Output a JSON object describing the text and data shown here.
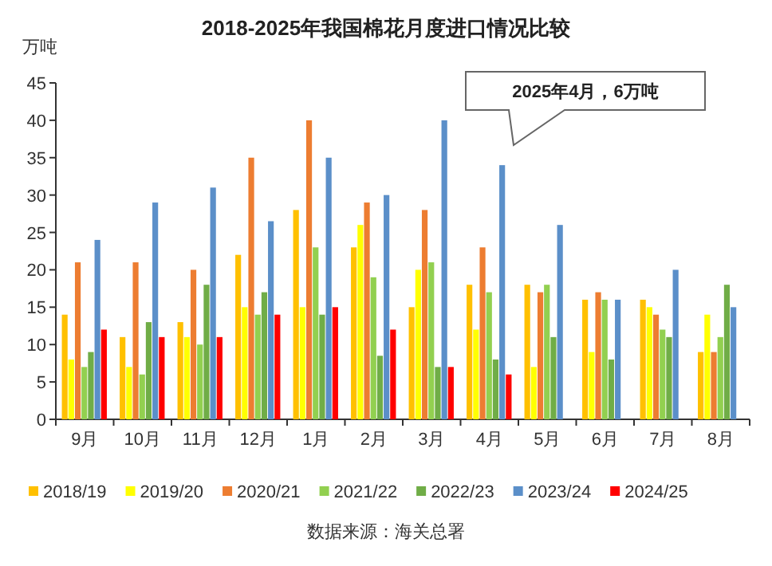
{
  "chart_data": {
    "type": "bar",
    "title": "2018-2025年我国棉花月度进口情况比较",
    "ylabel": "万吨",
    "categories": [
      "9月",
      "10月",
      "11月",
      "12月",
      "1月",
      "2月",
      "3月",
      "4月",
      "5月",
      "6月",
      "7月",
      "8月"
    ],
    "series": [
      {
        "name": "2018/19",
        "color": "#ffc000",
        "values": [
          14,
          11,
          13,
          22,
          28,
          23,
          15,
          18,
          18,
          16,
          16,
          9
        ]
      },
      {
        "name": "2019/20",
        "color": "#ffff00",
        "values": [
          8,
          7,
          11,
          15,
          15,
          26,
          20,
          12,
          7,
          9,
          15,
          14
        ]
      },
      {
        "name": "2020/21",
        "color": "#ed7d31",
        "values": [
          21,
          21,
          20,
          35,
          40,
          29,
          28,
          23,
          17,
          17,
          14,
          9
        ]
      },
      {
        "name": "2021/22",
        "color": "#92d050",
        "values": [
          7,
          6,
          10,
          14,
          23,
          19,
          21,
          17,
          18,
          16,
          12,
          11
        ]
      },
      {
        "name": "2022/23",
        "color": "#70ad47",
        "values": [
          9,
          13,
          18,
          17,
          14,
          8.5,
          7,
          8,
          11,
          8,
          11,
          18
        ]
      },
      {
        "name": "2023/24",
        "color": "#5b8fc9",
        "values": [
          24,
          29,
          31,
          26.5,
          35,
          30,
          40,
          34,
          26,
          16,
          20,
          15
        ]
      },
      {
        "name": "2024/25",
        "color": "#ff0000",
        "values": [
          12,
          11,
          11,
          14,
          15,
          12,
          7,
          6,
          null,
          null,
          null,
          null
        ]
      }
    ],
    "ylim": [
      0,
      45
    ],
    "yticks": [
      0,
      5,
      10,
      15,
      20,
      25,
      30,
      35,
      40,
      45
    ],
    "grid": false,
    "legend": "bottom",
    "annotations": [
      "2025年4月，6万吨",
      "数据来源：海关总署"
    ]
  }
}
